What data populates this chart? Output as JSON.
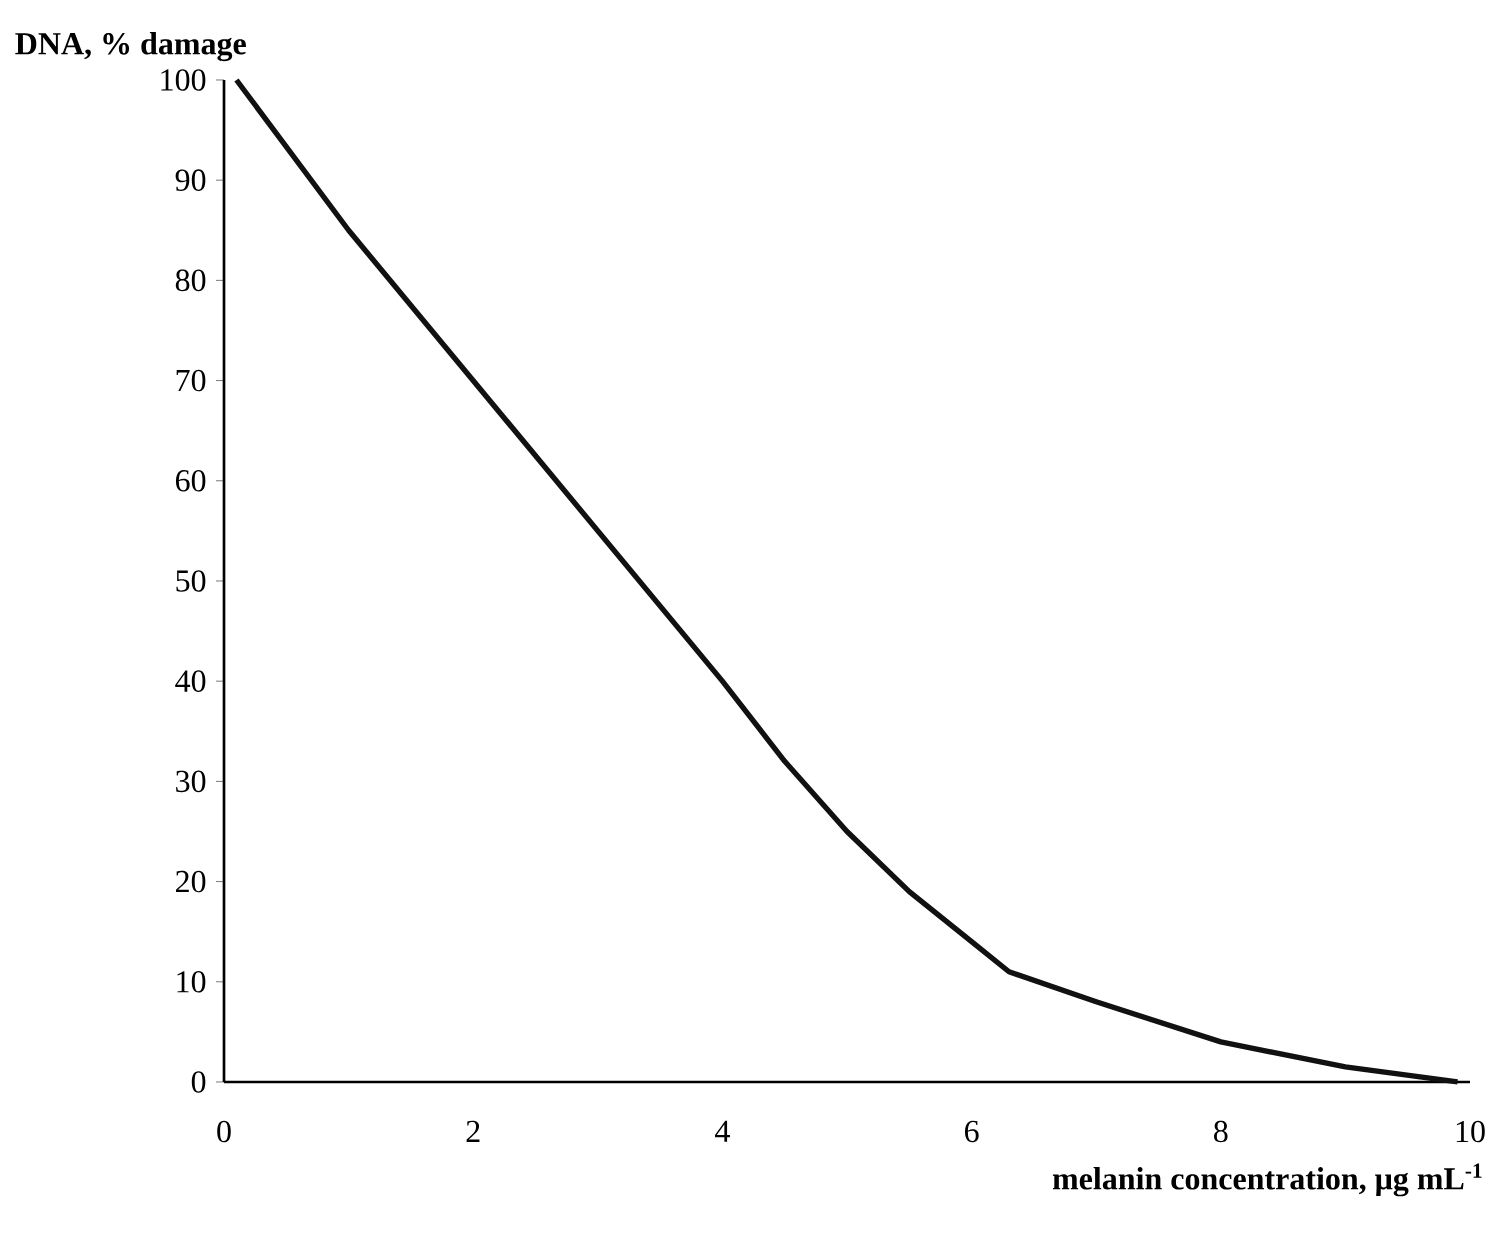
{
  "chart_data": {
    "type": "line",
    "xlabel": "melanin concentration, μg mL$^{-1}$",
    "ylabel": "DNA, % damage",
    "x": [
      0.1,
      1,
      2,
      3,
      4,
      4.5,
      5,
      5.5,
      6,
      6.3,
      7,
      8,
      9,
      9.9
    ],
    "values": [
      100,
      85,
      70,
      55,
      40,
      32,
      25,
      19,
      14,
      11,
      8,
      4,
      1.5,
      0
    ],
    "color": "#111111",
    "line_style": "solid",
    "marker": "none",
    "xlim": [
      0,
      10
    ],
    "ylim": [
      0,
      100
    ],
    "xticks": [
      0,
      2,
      4,
      6,
      8,
      10
    ],
    "yticks": [
      0,
      10,
      20,
      30,
      40,
      50,
      60,
      70,
      80,
      90,
      100
    ],
    "grid": false
  }
}
